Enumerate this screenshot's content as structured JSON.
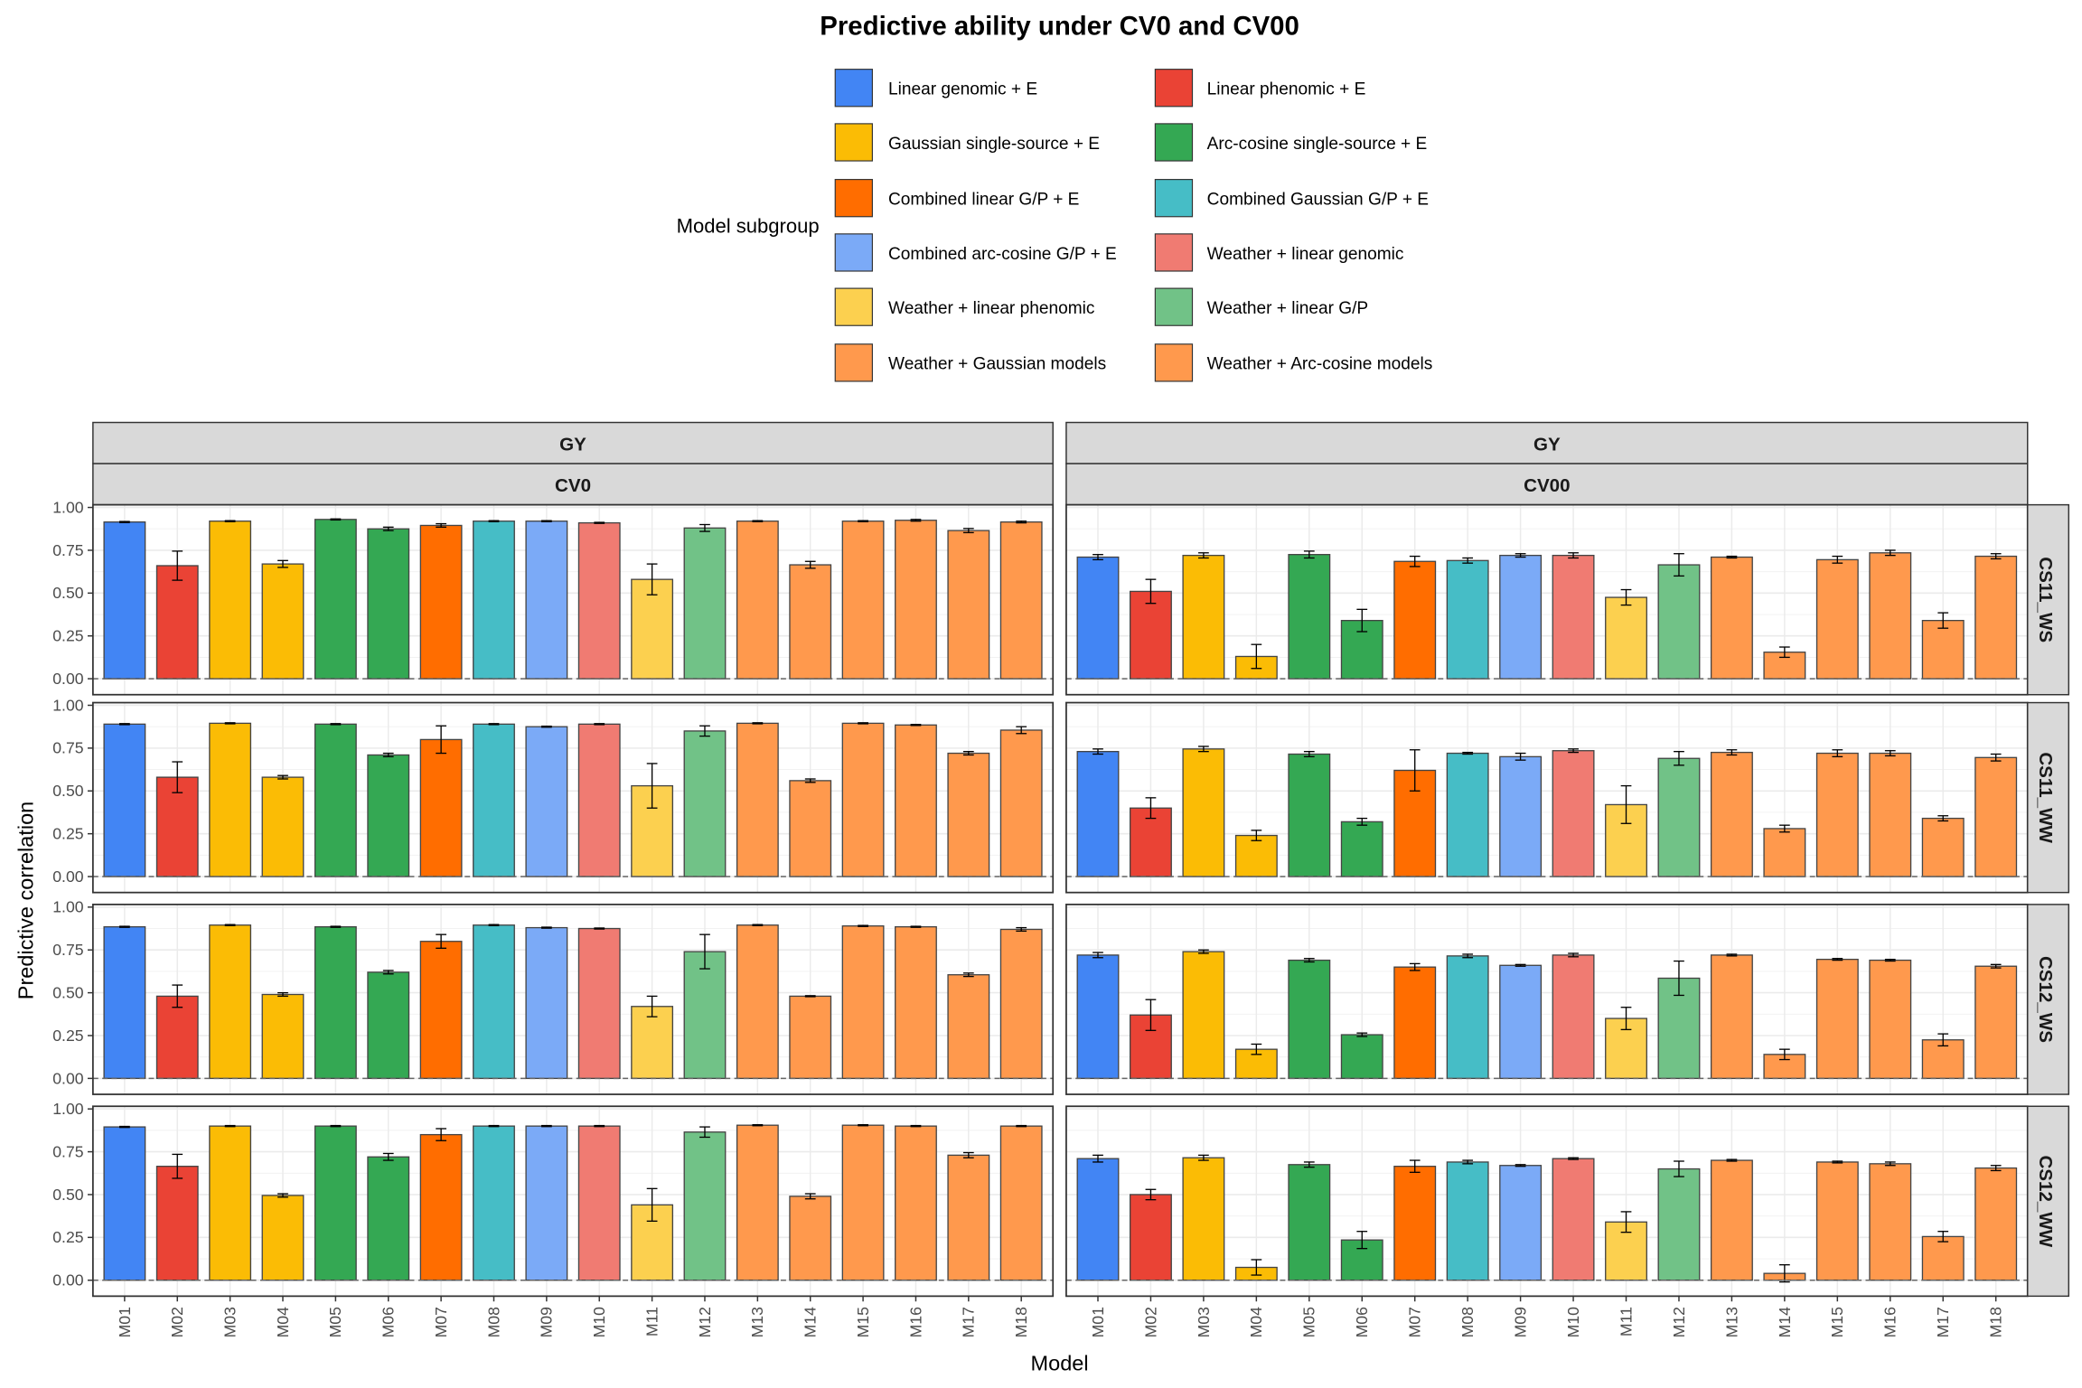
{
  "chart_data": {
    "type": "bar",
    "title": "Predictive ability under CV0 and CV00",
    "xlabel": "Model",
    "ylabel": "Predictive correlation",
    "ylim": [
      0,
      1
    ],
    "yticks": [
      "0.00",
      "0.25",
      "0.50",
      "0.75",
      "1.00"
    ],
    "grid": true,
    "legend_position": "top",
    "legend_title": "Model subgroup",
    "legend": [
      {
        "label": "Linear genomic + E",
        "color": "#4285F4"
      },
      {
        "label": "Linear phenomic + E",
        "color": "#EA4335"
      },
      {
        "label": "Gaussian single-source + E",
        "color": "#FBBC05"
      },
      {
        "label": "Arc-cosine single-source + E",
        "color": "#34A853"
      },
      {
        "label": "Combined linear G/P + E",
        "color": "#FF6D00"
      },
      {
        "label": "Combined Gaussian G/P + E",
        "color": "#46BDC6"
      },
      {
        "label": "Combined arc-cosine G/P + E",
        "color": "#7BAAF7"
      },
      {
        "label": "Weather + linear genomic",
        "color": "#F07B72"
      },
      {
        "label": "Weather + linear phenomic",
        "color": "#FCD04F"
      },
      {
        "label": "Weather + linear G/P",
        "color": "#71C287"
      },
      {
        "label": "Weather + Gaussian models",
        "color": "#FF994D"
      },
      {
        "label": "Weather + Arc-cosine models",
        "color": "#FF994D"
      }
    ],
    "categories": [
      "M01",
      "M02",
      "M03",
      "M04",
      "M05",
      "M06",
      "M07",
      "M08",
      "M09",
      "M10",
      "M11",
      "M12",
      "M13",
      "M14",
      "M15",
      "M16",
      "M17",
      "M18"
    ],
    "category_subgroup": [
      0,
      1,
      2,
      2,
      3,
      3,
      4,
      5,
      6,
      7,
      8,
      9,
      10,
      10,
      10,
      11,
      11,
      11
    ],
    "trait_strip": "GY",
    "columns": [
      "CV0",
      "CV00"
    ],
    "rows": [
      "CS11_WS",
      "CS11_WW",
      "CS12_WS",
      "CS12_WW"
    ],
    "panels": {
      "CS11_WS": {
        "CV0": {
          "values": [
            0.915,
            0.66,
            0.92,
            0.67,
            0.93,
            0.875,
            0.895,
            0.92,
            0.92,
            0.91,
            0.58,
            0.88,
            0.92,
            0.665,
            0.92,
            0.925,
            0.865,
            0.915
          ],
          "errors": [
            0.003,
            0.085,
            0.003,
            0.02,
            0.003,
            0.01,
            0.01,
            0.003,
            0.003,
            0.003,
            0.09,
            0.02,
            0.003,
            0.02,
            0.003,
            0.005,
            0.012,
            0.005
          ]
        },
        "CV00": {
          "values": [
            0.71,
            0.51,
            0.72,
            0.13,
            0.725,
            0.34,
            0.685,
            0.69,
            0.72,
            0.72,
            0.475,
            0.665,
            0.71,
            0.155,
            0.695,
            0.735,
            0.34,
            0.715
          ],
          "errors": [
            0.015,
            0.07,
            0.015,
            0.07,
            0.02,
            0.065,
            0.03,
            0.015,
            0.01,
            0.015,
            0.045,
            0.065,
            0.005,
            0.03,
            0.02,
            0.015,
            0.045,
            0.015
          ]
        }
      },
      "CS11_WW": {
        "CV0": {
          "values": [
            0.89,
            0.58,
            0.895,
            0.58,
            0.89,
            0.71,
            0.8,
            0.89,
            0.875,
            0.89,
            0.53,
            0.85,
            0.895,
            0.56,
            0.895,
            0.885,
            0.72,
            0.855
          ],
          "errors": [
            0.003,
            0.09,
            0.003,
            0.01,
            0.003,
            0.01,
            0.08,
            0.003,
            0.003,
            0.003,
            0.13,
            0.03,
            0.003,
            0.01,
            0.003,
            0.003,
            0.01,
            0.02
          ]
        },
        "CV00": {
          "values": [
            0.73,
            0.4,
            0.745,
            0.24,
            0.715,
            0.32,
            0.62,
            0.72,
            0.7,
            0.735,
            0.42,
            0.69,
            0.725,
            0.28,
            0.72,
            0.72,
            0.34,
            0.695
          ],
          "errors": [
            0.015,
            0.06,
            0.015,
            0.03,
            0.015,
            0.02,
            0.12,
            0.005,
            0.02,
            0.01,
            0.11,
            0.04,
            0.015,
            0.02,
            0.02,
            0.015,
            0.015,
            0.02
          ]
        }
      },
      "CS12_WS": {
        "CV0": {
          "values": [
            0.885,
            0.48,
            0.895,
            0.49,
            0.885,
            0.62,
            0.8,
            0.895,
            0.88,
            0.875,
            0.42,
            0.74,
            0.895,
            0.48,
            0.89,
            0.885,
            0.605,
            0.87
          ],
          "errors": [
            0.003,
            0.065,
            0.003,
            0.01,
            0.003,
            0.01,
            0.04,
            0.003,
            0.003,
            0.003,
            0.06,
            0.1,
            0.003,
            0.003,
            0.003,
            0.003,
            0.01,
            0.01
          ]
        },
        "CV00": {
          "values": [
            0.72,
            0.37,
            0.74,
            0.17,
            0.69,
            0.255,
            0.65,
            0.715,
            0.66,
            0.72,
            0.35,
            0.585,
            0.72,
            0.14,
            0.695,
            0.69,
            0.225,
            0.655
          ],
          "errors": [
            0.015,
            0.09,
            0.01,
            0.03,
            0.01,
            0.01,
            0.02,
            0.01,
            0.005,
            0.01,
            0.065,
            0.1,
            0.005,
            0.03,
            0.005,
            0.005,
            0.035,
            0.01
          ]
        }
      },
      "CS12_WW": {
        "CV0": {
          "values": [
            0.895,
            0.665,
            0.9,
            0.495,
            0.9,
            0.72,
            0.85,
            0.9,
            0.9,
            0.9,
            0.44,
            0.865,
            0.905,
            0.49,
            0.905,
            0.9,
            0.73,
            0.9
          ],
          "errors": [
            0.003,
            0.07,
            0.003,
            0.01,
            0.003,
            0.02,
            0.035,
            0.003,
            0.003,
            0.003,
            0.095,
            0.03,
            0.003,
            0.015,
            0.003,
            0.003,
            0.015,
            0.003
          ]
        },
        "CV00": {
          "values": [
            0.71,
            0.5,
            0.715,
            0.075,
            0.675,
            0.235,
            0.665,
            0.69,
            0.67,
            0.71,
            0.34,
            0.65,
            0.7,
            0.04,
            0.69,
            0.68,
            0.255,
            0.655
          ],
          "errors": [
            0.02,
            0.03,
            0.015,
            0.045,
            0.015,
            0.05,
            0.035,
            0.01,
            0.005,
            0.005,
            0.06,
            0.045,
            0.005,
            0.05,
            0.005,
            0.01,
            0.03,
            0.015
          ]
        }
      }
    }
  }
}
